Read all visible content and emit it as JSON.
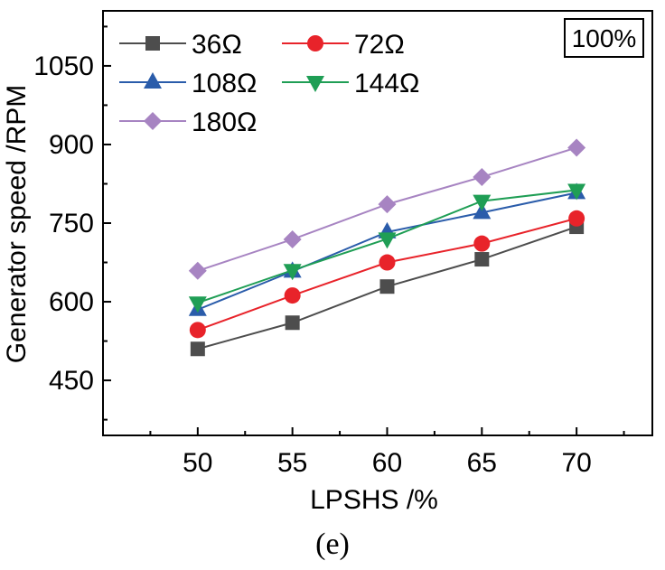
{
  "chart_data": {
    "type": "line",
    "xlabel": "LPSHS /%",
    "ylabel": "Generator speed /RPM",
    "x": [
      50,
      55,
      60,
      65,
      70
    ],
    "xlim": [
      45,
      74
    ],
    "ylim": [
      345,
      1155
    ],
    "yticks": [
      450,
      600,
      750,
      900,
      1050
    ],
    "grid": false,
    "legend_position": "top-left",
    "annotation": "100%",
    "series": [
      {
        "name": "36Ω",
        "color": "#4d4d4d",
        "marker": "square",
        "values": [
          510,
          560,
          629,
          681,
          743
        ]
      },
      {
        "name": "72Ω",
        "color": "#e8232a",
        "marker": "circle",
        "values": [
          546,
          612,
          675,
          711,
          759
        ]
      },
      {
        "name": "108Ω",
        "color": "#2a5caa",
        "marker": "triangle-up",
        "values": [
          585,
          658,
          733,
          770,
          808
        ]
      },
      {
        "name": "144Ω",
        "color": "#1f9e55",
        "marker": "triangle-down",
        "values": [
          598,
          660,
          720,
          792,
          813
        ]
      },
      {
        "name": "180Ω",
        "color": "#a784c2",
        "marker": "diamond",
        "values": [
          659,
          719,
          786,
          838,
          894
        ]
      }
    ]
  },
  "caption": "(e)"
}
